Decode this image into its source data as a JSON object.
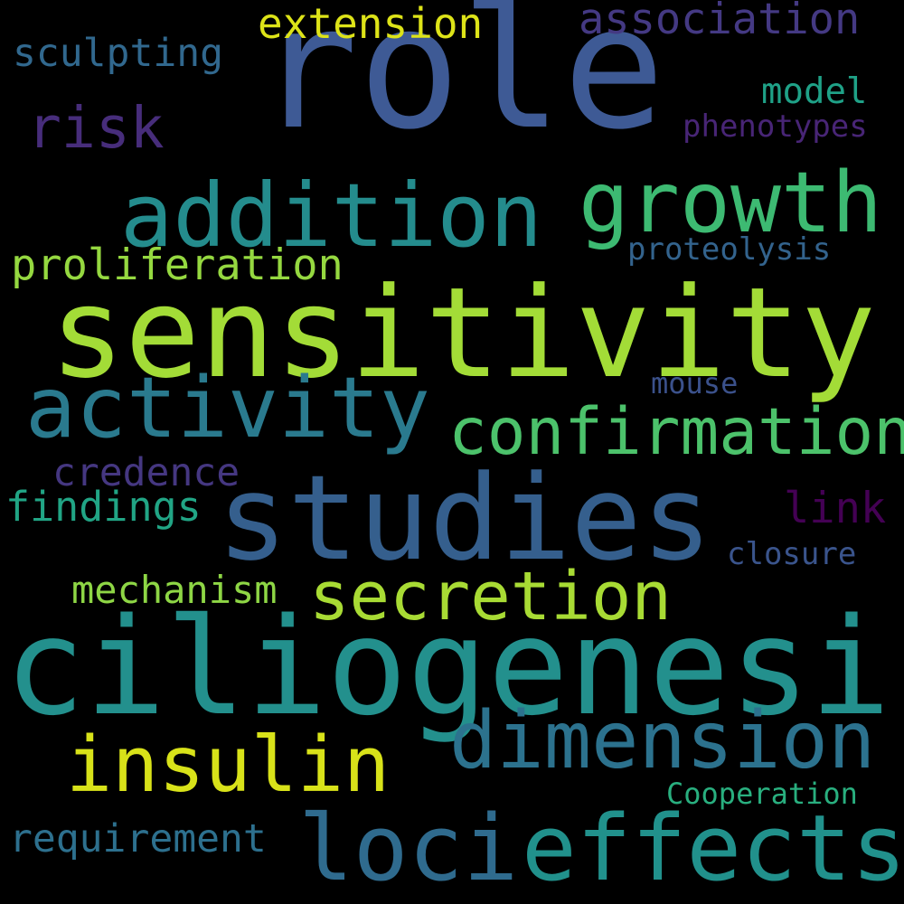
{
  "words": {
    "role": {
      "text": "role",
      "color": "#3e5a95"
    },
    "sensitivity": {
      "text": "sensitivity",
      "color": "#a3dc37"
    },
    "ciliogenesis": {
      "text": "ciliogenesis",
      "color": "#23908d"
    },
    "studies": {
      "text": "studies",
      "color": "#355f8d"
    },
    "addition": {
      "text": "addition",
      "color": "#248c8d"
    },
    "growth": {
      "text": "growth",
      "color": "#3dba72"
    },
    "activity": {
      "text": "activity",
      "color": "#2a7a8e"
    },
    "confirmation": {
      "text": "confirmation",
      "color": "#4cc26b"
    },
    "secretion": {
      "text": "secretion",
      "color": "#a8db34"
    },
    "dimension": {
      "text": "dimension",
      "color": "#2c728e"
    },
    "insulin": {
      "text": "insulin",
      "color": "#d8e219"
    },
    "loci": {
      "text": "loci",
      "color": "#2f6b8e"
    },
    "effects": {
      "text": "effects",
      "color": "#21918c"
    },
    "risk": {
      "text": "risk",
      "color": "#472d7b"
    },
    "association": {
      "text": "association",
      "color": "#443983"
    },
    "extension": {
      "text": "extension",
      "color": "#dde318"
    },
    "sculpting": {
      "text": "sculpting",
      "color": "#31688e"
    },
    "model": {
      "text": "model",
      "color": "#1fa187"
    },
    "phenotypes": {
      "text": "phenotypes",
      "color": "#482576"
    },
    "proliferation": {
      "text": "proliferation",
      "color": "#95d840"
    },
    "proteolysis": {
      "text": "proteolysis",
      "color": "#33638d"
    },
    "mouse": {
      "text": "mouse",
      "color": "#3b518b"
    },
    "credence": {
      "text": "credence",
      "color": "#453781"
    },
    "findings": {
      "text": "findings",
      "color": "#21a585"
    },
    "link": {
      "text": "link",
      "color": "#440154"
    },
    "closure": {
      "text": "closure",
      "color": "#3a548c"
    },
    "mechanism": {
      "text": "mechanism",
      "color": "#8ed645"
    },
    "cooperation": {
      "text": "Cooperation",
      "color": "#29af7f"
    },
    "requirement": {
      "text": "requirement",
      "color": "#2d708e"
    }
  }
}
